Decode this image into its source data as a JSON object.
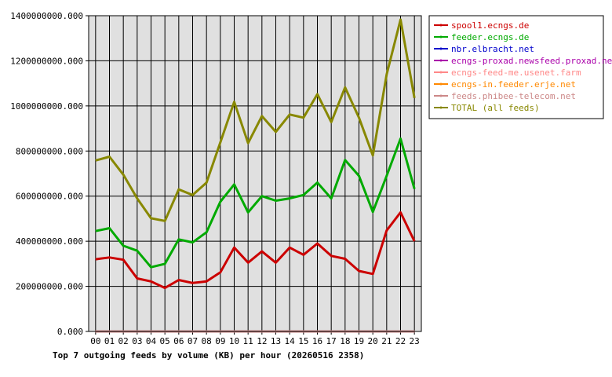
{
  "chart_data": {
    "type": "line",
    "title": "Top 7 outgoing feeds by volume (KB) per hour (20260516 2358)",
    "xlabel": "",
    "ylabel": "",
    "ylim": [
      0,
      1400000000
    ],
    "y_ticks": [
      "0.000",
      "200000000.000",
      "400000000.000",
      "600000000.000",
      "800000000.000",
      "1000000000.000",
      "1200000000.000",
      "1400000000.000"
    ],
    "y_tick_values": [
      0,
      200000000,
      400000000,
      600000000,
      800000000,
      1000000000,
      1200000000,
      1400000000
    ],
    "categories": [
      "00",
      "01",
      "02",
      "03",
      "04",
      "05",
      "06",
      "07",
      "08",
      "09",
      "10",
      "11",
      "12",
      "13",
      "14",
      "15",
      "16",
      "17",
      "18",
      "19",
      "20",
      "21",
      "22",
      "23"
    ],
    "grid": true,
    "legend_position": "right",
    "series": [
      {
        "name": "spool1.ecngs.de",
        "color": "#cc0000",
        "values": [
          320000000,
          328000000,
          318000000,
          235000000,
          222000000,
          193000000,
          228000000,
          215000000,
          222000000,
          262000000,
          372000000,
          305000000,
          355000000,
          305000000,
          372000000,
          340000000,
          390000000,
          335000000,
          322000000,
          268000000,
          255000000,
          448000000,
          528000000,
          400000000
        ]
      },
      {
        "name": "feeder.ecngs.de",
        "color": "#00aa00",
        "values": [
          445000000,
          458000000,
          380000000,
          358000000,
          285000000,
          300000000,
          408000000,
          395000000,
          440000000,
          575000000,
          652000000,
          528000000,
          600000000,
          580000000,
          590000000,
          605000000,
          660000000,
          590000000,
          760000000,
          690000000,
          530000000,
          690000000,
          855000000,
          632000000
        ]
      },
      {
        "name": "nbr.elbracht.net",
        "color": "#0000cc",
        "values": [
          0,
          0,
          0,
          0,
          0,
          0,
          0,
          0,
          0,
          0,
          0,
          0,
          0,
          0,
          0,
          0,
          0,
          0,
          0,
          0,
          0,
          0,
          0,
          0
        ]
      },
      {
        "name": "ecngs-proxad.newsfeed.proxad.net",
        "color": "#aa00aa",
        "values": [
          0,
          0,
          0,
          0,
          0,
          0,
          0,
          0,
          0,
          0,
          0,
          0,
          0,
          0,
          0,
          0,
          0,
          0,
          0,
          0,
          0,
          0,
          0,
          0
        ]
      },
      {
        "name": "ecngs-feed-me.usenet.farm",
        "color": "#ff8888",
        "values": [
          0,
          0,
          0,
          0,
          0,
          0,
          0,
          0,
          0,
          0,
          0,
          0,
          0,
          0,
          0,
          0,
          0,
          0,
          0,
          0,
          0,
          0,
          0,
          0
        ]
      },
      {
        "name": "ecngs-in.feeder.erje.net",
        "color": "#ff8800",
        "values": [
          0,
          0,
          0,
          0,
          0,
          0,
          0,
          0,
          0,
          0,
          0,
          0,
          0,
          0,
          0,
          0,
          0,
          0,
          0,
          0,
          0,
          0,
          0,
          0
        ]
      },
      {
        "name": "feeds.phibee-telecom.net",
        "color": "#cc8888",
        "values": [
          0,
          0,
          0,
          0,
          0,
          0,
          0,
          0,
          0,
          0,
          0,
          0,
          0,
          0,
          0,
          0,
          0,
          0,
          0,
          0,
          0,
          0,
          0,
          0
        ]
      },
      {
        "name": "TOTAL (all feeds)",
        "color": "#888800",
        "values": [
          758000000,
          775000000,
          695000000,
          590000000,
          502000000,
          490000000,
          630000000,
          605000000,
          660000000,
          838000000,
          1018000000,
          835000000,
          955000000,
          885000000,
          962000000,
          948000000,
          1052000000,
          928000000,
          1082000000,
          948000000,
          780000000,
          1140000000,
          1383000000,
          1035000000
        ]
      }
    ]
  }
}
